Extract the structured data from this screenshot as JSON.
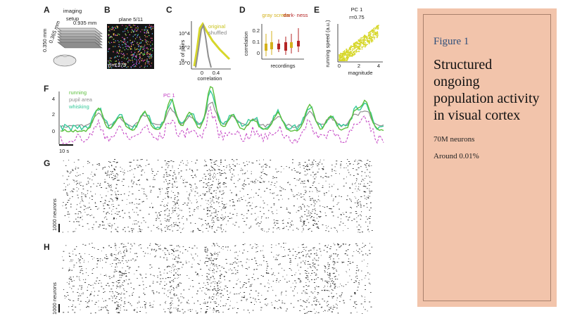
{
  "figure": {
    "panels": {
      "A": {
        "label": "A",
        "title_line1": "imaging",
        "title_line2": "setup",
        "dim_top": "0.935 mm",
        "dim_side": "0.365 mm",
        "dim_left": "0.350 mm"
      },
      "B": {
        "label": "B",
        "title": "plane 5/11",
        "count": "n=1379"
      },
      "C": {
        "label": "C",
        "ylabel": "# of pairs",
        "xlabel": "correlation",
        "legend_original": "original",
        "legend_shuffled": "shuffled",
        "yticks": [
          "10^4",
          "10^2",
          "10^0"
        ],
        "xticks": [
          "0",
          "0.4"
        ]
      },
      "D": {
        "label": "D",
        "ylabel": "correlation",
        "xlabel": "recordings",
        "legend_gray": "gray screen",
        "legend_dark": "dark- ness",
        "yticks": [
          "0.2",
          "0.1",
          "0"
        ]
      },
      "E": {
        "label": "E",
        "title_line1": "PC 1",
        "title_line2": "r=0.75",
        "ylabel": "running speed (a.u.)",
        "xlabel": "magnitude",
        "xticks": [
          "0",
          "2",
          "4"
        ]
      },
      "F": {
        "label": "F",
        "legend": [
          "running",
          "pupil area",
          "whisking"
        ],
        "pc_label": "PC 1",
        "yticks": [
          "4",
          "2",
          "0"
        ],
        "scale": "10 s"
      },
      "G": {
        "label": "G",
        "ylabel": "1000 neurons"
      },
      "H": {
        "label": "H",
        "ylabel": "1000 neurons"
      }
    },
    "colors": {
      "running": "#5bbf3c",
      "pupil": "#8f8f8f",
      "whisking": "#35c99a",
      "pc1": "#c23cc2",
      "original": "#d7d72a",
      "gray_screen": "#d4b21c",
      "darkness": "#b42525"
    }
  },
  "card": {
    "figure_label": "Figure 1",
    "title": "Structured ongoing population activity in visual cortex",
    "line1": "70M neurons",
    "line2": "Around 0.01%"
  }
}
